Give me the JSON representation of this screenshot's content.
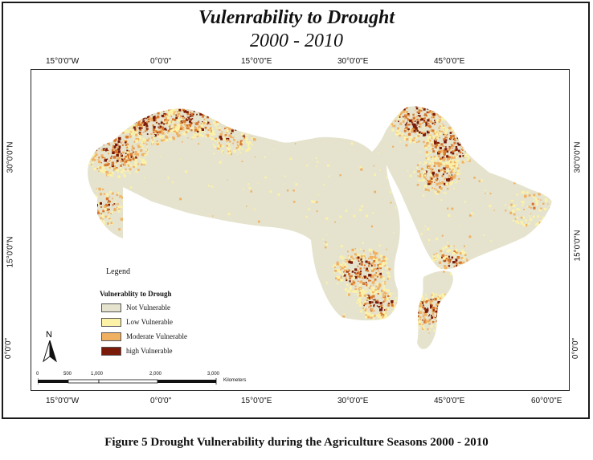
{
  "title": {
    "line1": "Vulenrability to Drought",
    "line2": "2000 - 2010"
  },
  "axes": {
    "lon_top": [
      "15°0'0\"W",
      "0°0'0\"",
      "15°0'0\"E",
      "30°0'0\"E",
      "45°0'0\"E"
    ],
    "lon_bottom": [
      "15°0'0\"W",
      "0°0'0\"",
      "15°0'0\"E",
      "30°0'0\"E",
      "45°0'0\"E",
      "60°0'0\"E"
    ],
    "lat_left": [
      "30°0'0\"N",
      "15°0'0\"N",
      "0°0'0\""
    ],
    "lat_right": [
      "30°0'0\"N",
      "15°0'0\"N",
      "0°0'0\""
    ]
  },
  "legend": {
    "title": "Legend",
    "subtitle": "Vulnerablity to Drough",
    "items": [
      {
        "label": "Not Vulnerable",
        "color": "#e5e3cd"
      },
      {
        "label": "Low Vulnerable",
        "color": "#fbf2a8"
      },
      {
        "label": "Moderate Vulnerable",
        "color": "#f0b062"
      },
      {
        "label": "high Vulnerable",
        "color": "#7a1a08"
      }
    ]
  },
  "north_arrow": {
    "letter": "N",
    "icon": "north-arrow-icon"
  },
  "scalebar": {
    "ticks": [
      "0",
      "500",
      "1,000",
      "2,000",
      "3,000"
    ],
    "unit": "Kilometers"
  },
  "caption": "Figure 5  Drought Vulnerability during the Agriculture Seasons   2000 - 2010",
  "colors": {
    "base": "#e5e3cd",
    "low": "#fbf2a8",
    "moderate": "#f0b062",
    "moderate_dark": "#d8772b",
    "high": "#7a1a08"
  }
}
